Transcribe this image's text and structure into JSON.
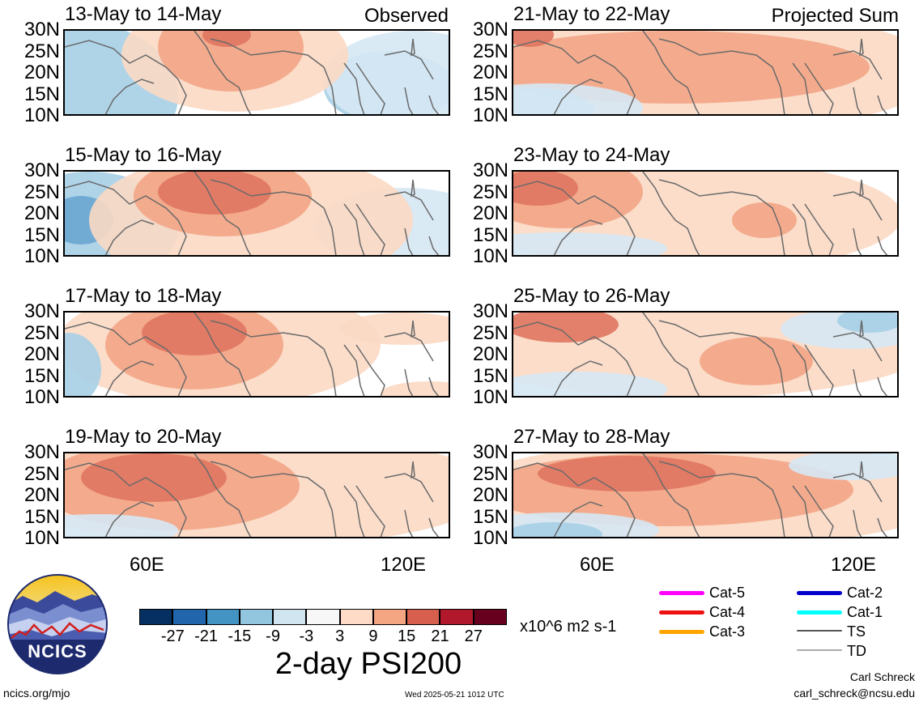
{
  "panels": [
    {
      "id": "p1",
      "title": "13-May to 14-May",
      "label": "Observed",
      "blobs": [
        {
          "c": "#a6cfe6",
          "cx": 20,
          "cy": 80,
          "rx": 120,
          "ry": 90
        },
        {
          "c": "#a6cfe6",
          "cx": 400,
          "cy": 70,
          "rx": 80,
          "ry": 45
        },
        {
          "c": "#d6e8f4",
          "cx": 430,
          "cy": 60,
          "rx": 110,
          "ry": 60
        },
        {
          "c": "#fbd9c4",
          "cx": 210,
          "cy": 30,
          "rx": 140,
          "ry": 70
        },
        {
          "c": "#f3a586",
          "cx": 205,
          "cy": 20,
          "rx": 90,
          "ry": 55
        },
        {
          "c": "#e07660",
          "cx": 200,
          "cy": 5,
          "rx": 30,
          "ry": 15
        }
      ]
    },
    {
      "id": "p2",
      "title": "21-May to 22-May",
      "label": "Projected Sum",
      "blobs": [
        {
          "c": "#fbd9c4",
          "cx": 230,
          "cy": 50,
          "rx": 300,
          "ry": 75
        },
        {
          "c": "#f3a586",
          "cx": 200,
          "cy": 45,
          "rx": 240,
          "ry": 45
        },
        {
          "c": "#e07660",
          "cx": 20,
          "cy": 5,
          "rx": 30,
          "ry": 15
        },
        {
          "c": "#a6cfe6",
          "cx": 20,
          "cy": 100,
          "rx": 80,
          "ry": 30
        },
        {
          "c": "#d6e8f4",
          "cx": 40,
          "cy": 95,
          "rx": 120,
          "ry": 30
        }
      ]
    },
    {
      "id": "p3",
      "title": "15-May to 16-May",
      "label": "",
      "blobs": [
        {
          "c": "#a6cfe6",
          "cx": 30,
          "cy": 70,
          "rx": 110,
          "ry": 70
        },
        {
          "c": "#6aa6d2",
          "cx": 20,
          "cy": 60,
          "rx": 40,
          "ry": 30
        },
        {
          "c": "#d6e8f4",
          "cx": 420,
          "cy": 70,
          "rx": 110,
          "ry": 50
        },
        {
          "c": "#fbd9c4",
          "cx": 230,
          "cy": 60,
          "rx": 200,
          "ry": 85
        },
        {
          "c": "#f3a586",
          "cx": 195,
          "cy": 30,
          "rx": 110,
          "ry": 50
        },
        {
          "c": "#e07660",
          "cx": 185,
          "cy": 25,
          "rx": 70,
          "ry": 28
        }
      ]
    },
    {
      "id": "p4",
      "title": "23-May to 24-May",
      "label": "",
      "blobs": [
        {
          "c": "#fbd9c4",
          "cx": 220,
          "cy": 55,
          "rx": 260,
          "ry": 70
        },
        {
          "c": "#f3a586",
          "cx": 60,
          "cy": 25,
          "rx": 100,
          "ry": 45
        },
        {
          "c": "#e07660",
          "cx": 30,
          "cy": 20,
          "rx": 50,
          "ry": 22
        },
        {
          "c": "#f3a586",
          "cx": 310,
          "cy": 60,
          "rx": 40,
          "ry": 22
        },
        {
          "c": "#d6e8f4",
          "cx": 60,
          "cy": 95,
          "rx": 130,
          "ry": 20
        }
      ]
    },
    {
      "id": "p5",
      "title": "17-May to 18-May",
      "label": "",
      "blobs": [
        {
          "c": "#fbd9c4",
          "cx": 190,
          "cy": 40,
          "rx": 200,
          "ry": 75
        },
        {
          "c": "#f3a586",
          "cx": 160,
          "cy": 40,
          "rx": 110,
          "ry": 55
        },
        {
          "c": "#e07660",
          "cx": 160,
          "cy": 25,
          "rx": 65,
          "ry": 28
        },
        {
          "c": "#a6cfe6",
          "cx": 5,
          "cy": 70,
          "rx": 40,
          "ry": 45
        },
        {
          "c": "#fbd9c4",
          "cx": 420,
          "cy": 20,
          "rx": 80,
          "ry": 20
        },
        {
          "c": "#fbd9c4",
          "cx": 450,
          "cy": 100,
          "rx": 60,
          "ry": 15
        }
      ]
    },
    {
      "id": "p6",
      "title": "25-May to 26-May",
      "label": "",
      "blobs": [
        {
          "c": "#fbd9c4",
          "cx": 220,
          "cy": 45,
          "rx": 290,
          "ry": 60
        },
        {
          "c": "#e07660",
          "cx": 60,
          "cy": 15,
          "rx": 70,
          "ry": 22
        },
        {
          "c": "#f3a586",
          "cx": 300,
          "cy": 60,
          "rx": 70,
          "ry": 30
        },
        {
          "c": "#d6e8f4",
          "cx": 420,
          "cy": 20,
          "rx": 90,
          "ry": 25
        },
        {
          "c": "#a6cfe6",
          "cx": 440,
          "cy": 10,
          "rx": 40,
          "ry": 15
        },
        {
          "c": "#d6e8f4",
          "cx": 80,
          "cy": 95,
          "rx": 110,
          "ry": 22
        }
      ]
    },
    {
      "id": "p7",
      "title": "19-May to 20-May",
      "label": "",
      "blobs": [
        {
          "c": "#fbd9c4",
          "cx": 230,
          "cy": 45,
          "rx": 300,
          "ry": 70
        },
        {
          "c": "#f3a586",
          "cx": 130,
          "cy": 40,
          "rx": 160,
          "ry": 55
        },
        {
          "c": "#e07660",
          "cx": 110,
          "cy": 30,
          "rx": 90,
          "ry": 30
        },
        {
          "c": "#d6e8f4",
          "cx": 40,
          "cy": 95,
          "rx": 100,
          "ry": 20
        }
      ]
    },
    {
      "id": "p8",
      "title": "27-May to 28-May",
      "label": "",
      "blobs": [
        {
          "c": "#fbd9c4",
          "cx": 240,
          "cy": 50,
          "rx": 310,
          "ry": 65
        },
        {
          "c": "#f3a586",
          "cx": 190,
          "cy": 45,
          "rx": 230,
          "ry": 45
        },
        {
          "c": "#e07660",
          "cx": 140,
          "cy": 25,
          "rx": 110,
          "ry": 22
        },
        {
          "c": "#d6e8f4",
          "cx": 60,
          "cy": 95,
          "rx": 120,
          "ry": 22
        },
        {
          "c": "#a6cfe6",
          "cx": 50,
          "cy": 100,
          "rx": 60,
          "ry": 15
        },
        {
          "c": "#d6e8f4",
          "cx": 420,
          "cy": 15,
          "rx": 80,
          "ry": 18
        }
      ]
    }
  ],
  "lat_labels": [
    "30N",
    "25N",
    "20N",
    "15N",
    "10N"
  ],
  "lon_labels": [
    "60E",
    "120E"
  ],
  "colorbar": {
    "colors": [
      "#053061",
      "#2166ac",
      "#4393c3",
      "#92c5de",
      "#d1e5f0",
      "#f7f7f7",
      "#fddbc7",
      "#f4a582",
      "#d6604d",
      "#b2182b",
      "#67001f"
    ],
    "ticks": [
      "-27",
      "-21",
      "-15",
      "-9",
      "-3",
      "3",
      "9",
      "15",
      "21",
      "27"
    ],
    "units": "x10^6 m2 s-1",
    "title": "2-day PSI200"
  },
  "legend": [
    {
      "label": "Cat-5",
      "color": "#ff00ff",
      "thick": true
    },
    {
      "label": "Cat-4",
      "color": "#ee1111",
      "thick": true
    },
    {
      "label": "Cat-3",
      "color": "#ffa500",
      "thick": true
    },
    {
      "label": "Cat-2",
      "color": "#0000cc",
      "thick": true
    },
    {
      "label": "Cat-1",
      "color": "#00ffff",
      "thick": true
    },
    {
      "label": "TS",
      "color": "#555555",
      "thick": false
    },
    {
      "label": "TD",
      "color": "#aaaaaa",
      "thick": false
    }
  ],
  "logo_text": "NCICS",
  "footer": {
    "site": "ncics.org/mjo",
    "timestamp": "Wed 2025-05-21 1012 UTC",
    "author": "Carl Schreck",
    "email": "carl_schreck@ncsu.edu"
  }
}
